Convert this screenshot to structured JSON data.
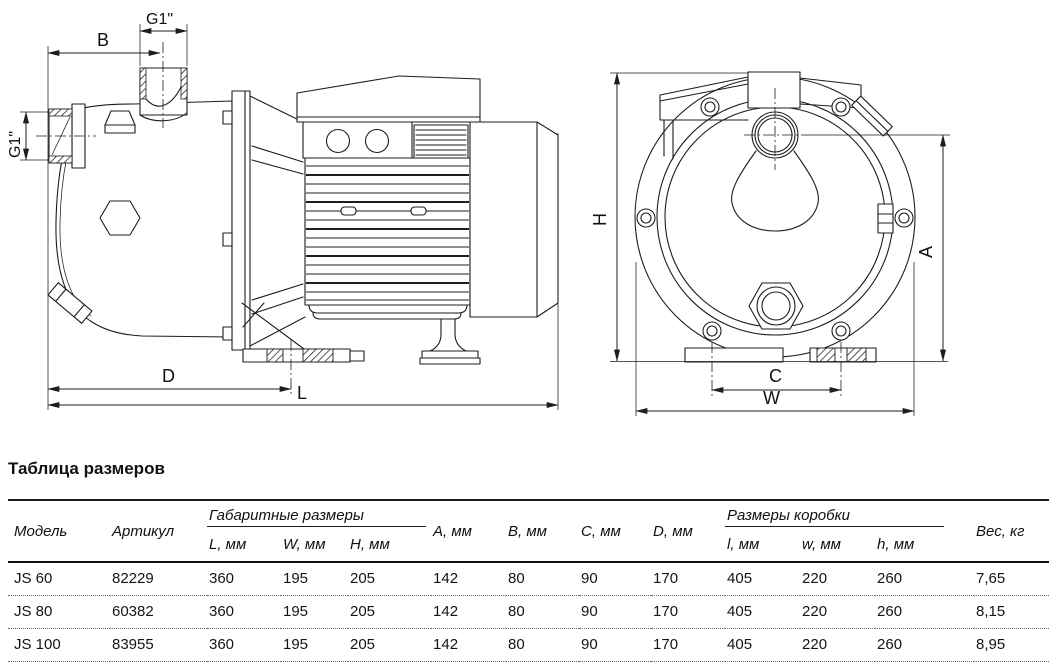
{
  "drawing": {
    "side_view": {
      "dims": {
        "g1_top": "G1\"",
        "b": "B",
        "g1_left": "G1\"",
        "d": "D",
        "l": "L"
      }
    },
    "front_view": {
      "dims": {
        "h": "H",
        "a": "A",
        "c": "C",
        "w": "W"
      }
    }
  },
  "table": {
    "title": "Таблица размеров",
    "groups": [
      {
        "label": "Габаритные размеры"
      },
      {
        "label": "Размеры коробки"
      }
    ],
    "columns": [
      "Модель",
      "Артикул",
      "L, мм",
      "W, мм",
      "H, мм",
      "A, мм",
      "B, мм",
      "C, мм",
      "D, мм",
      "l, мм",
      "w, мм",
      "h, мм",
      "Вес, кг"
    ],
    "rows": [
      [
        "JS 60",
        "82229",
        "360",
        "195",
        "205",
        "142",
        "80",
        "90",
        "170",
        "405",
        "220",
        "260",
        "7,65"
      ],
      [
        "JS 80",
        "60382",
        "360",
        "195",
        "205",
        "142",
        "80",
        "90",
        "170",
        "405",
        "220",
        "260",
        "8,15"
      ],
      [
        "JS 100",
        "83955",
        "360",
        "195",
        "205",
        "142",
        "80",
        "90",
        "170",
        "405",
        "220",
        "260",
        "8,95"
      ]
    ]
  },
  "colors": {
    "line": "#1d1d1d",
    "text": "#111111",
    "background": "#ffffff"
  }
}
